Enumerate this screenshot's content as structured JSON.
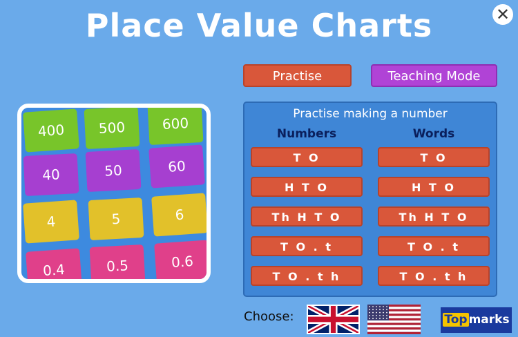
{
  "title": "Place Value Charts",
  "buttons": {
    "practise": "Practise",
    "teaching": "Teaching Mode"
  },
  "panel": {
    "title": "Practise making a number",
    "numbers_header": "Numbers",
    "words_header": "Words",
    "numbers": [
      "T O",
      "H T O",
      "Th H T O",
      "T O . t",
      "T O . t h"
    ],
    "words": [
      "T O",
      "H T O",
      "Th H T O",
      "T O . t",
      "T O . t h"
    ]
  },
  "tiles": [
    [
      "400",
      "500",
      "600"
    ],
    [
      "40",
      "50",
      "60"
    ],
    [
      "4",
      "5",
      "6"
    ],
    [
      "0.4",
      "0.5",
      "0.6"
    ]
  ],
  "tile_colors": [
    "#78c52a",
    "#a63fd0",
    "#e2c12a",
    "#e0408a"
  ],
  "footer": {
    "choose": "Choose:",
    "languages": [
      "UK English",
      "US English"
    ],
    "logo_top": "Top",
    "logo_marks": "marks"
  },
  "close_icon": "close-icon"
}
